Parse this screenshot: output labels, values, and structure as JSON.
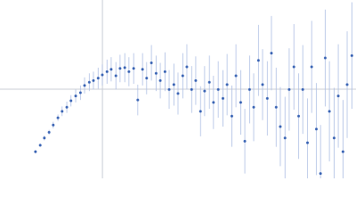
{
  "chart_data": {
    "type": "scatter",
    "x": [
      0.6,
      0.68,
      0.75,
      0.83,
      0.9,
      0.98,
      1.05,
      1.13,
      1.2,
      1.28,
      1.36,
      1.43,
      1.51,
      1.58,
      1.66,
      1.73,
      1.81,
      1.88,
      1.96,
      2.03,
      2.11,
      2.18,
      2.26,
      2.33,
      2.41,
      2.48,
      2.56,
      2.64,
      2.71,
      2.79,
      2.86,
      2.94,
      3.01,
      3.09,
      3.16,
      3.24,
      3.31,
      3.39,
      3.46,
      3.54,
      3.61,
      3.69,
      3.77,
      3.84,
      3.92,
      3.99,
      4.07,
      4.14,
      4.22,
      4.29,
      4.37,
      4.44,
      4.52,
      4.59,
      4.67,
      4.74,
      4.82,
      4.89,
      4.97,
      5.05,
      5.12,
      5.2,
      5.27,
      5.35,
      5.42,
      5.5,
      5.57,
      5.65,
      5.72,
      5.8,
      5.87,
      5.95
    ],
    "values": [
      0.33,
      0.41,
      0.5,
      0.57,
      0.66,
      0.75,
      0.83,
      0.88,
      0.96,
      1.02,
      1.06,
      1.15,
      1.19,
      1.21,
      1.24,
      1.28,
      1.32,
      1.35,
      1.27,
      1.36,
      1.37,
      1.32,
      1.36,
      0.97,
      1.35,
      1.24,
      1.43,
      1.3,
      1.21,
      1.32,
      1.1,
      1.16,
      1.05,
      1.27,
      1.38,
      1.1,
      1.21,
      0.83,
      1.08,
      1.19,
      0.94,
      1.1,
      0.99,
      1.16,
      0.77,
      1.27,
      0.94,
      0.46,
      1.1,
      0.88,
      1.46,
      1.16,
      0.99,
      1.55,
      0.88,
      0.64,
      0.5,
      1.1,
      1.38,
      0.77,
      1.1,
      0.44,
      1.38,
      0.61,
      0.06,
      1.49,
      0.83,
      0.5,
      1.02,
      0.33,
      1.16,
      1.52
    ],
    "errors": [
      0.02,
      0.02,
      0.03,
      0.03,
      0.04,
      0.04,
      0.06,
      0.07,
      0.07,
      0.08,
      0.09,
      0.1,
      0.11,
      0.11,
      0.13,
      0.13,
      0.15,
      0.15,
      0.17,
      0.17,
      0.18,
      0.18,
      0.19,
      0.19,
      0.2,
      0.2,
      0.22,
      0.22,
      0.22,
      0.24,
      0.24,
      0.26,
      0.26,
      0.28,
      0.28,
      0.29,
      0.3,
      0.31,
      0.31,
      0.33,
      0.33,
      0.35,
      0.35,
      0.38,
      0.38,
      0.39,
      0.4,
      0.4,
      0.42,
      0.42,
      0.44,
      0.44,
      0.46,
      0.46,
      0.49,
      0.49,
      0.51,
      0.51,
      0.53,
      0.53,
      0.55,
      0.55,
      0.57,
      0.57,
      0.6,
      0.6,
      0.62,
      0.62,
      0.64,
      0.64,
      0.66,
      0.66
    ],
    "color": "#3a64b4",
    "error_color": "#aebfe4",
    "reference_lines": {
      "x": 1.732,
      "y": 1.104,
      "color": "#c8cdd6"
    },
    "xlim": [
      0,
      6.02
    ],
    "ylim": [
      0,
      2.208
    ]
  }
}
